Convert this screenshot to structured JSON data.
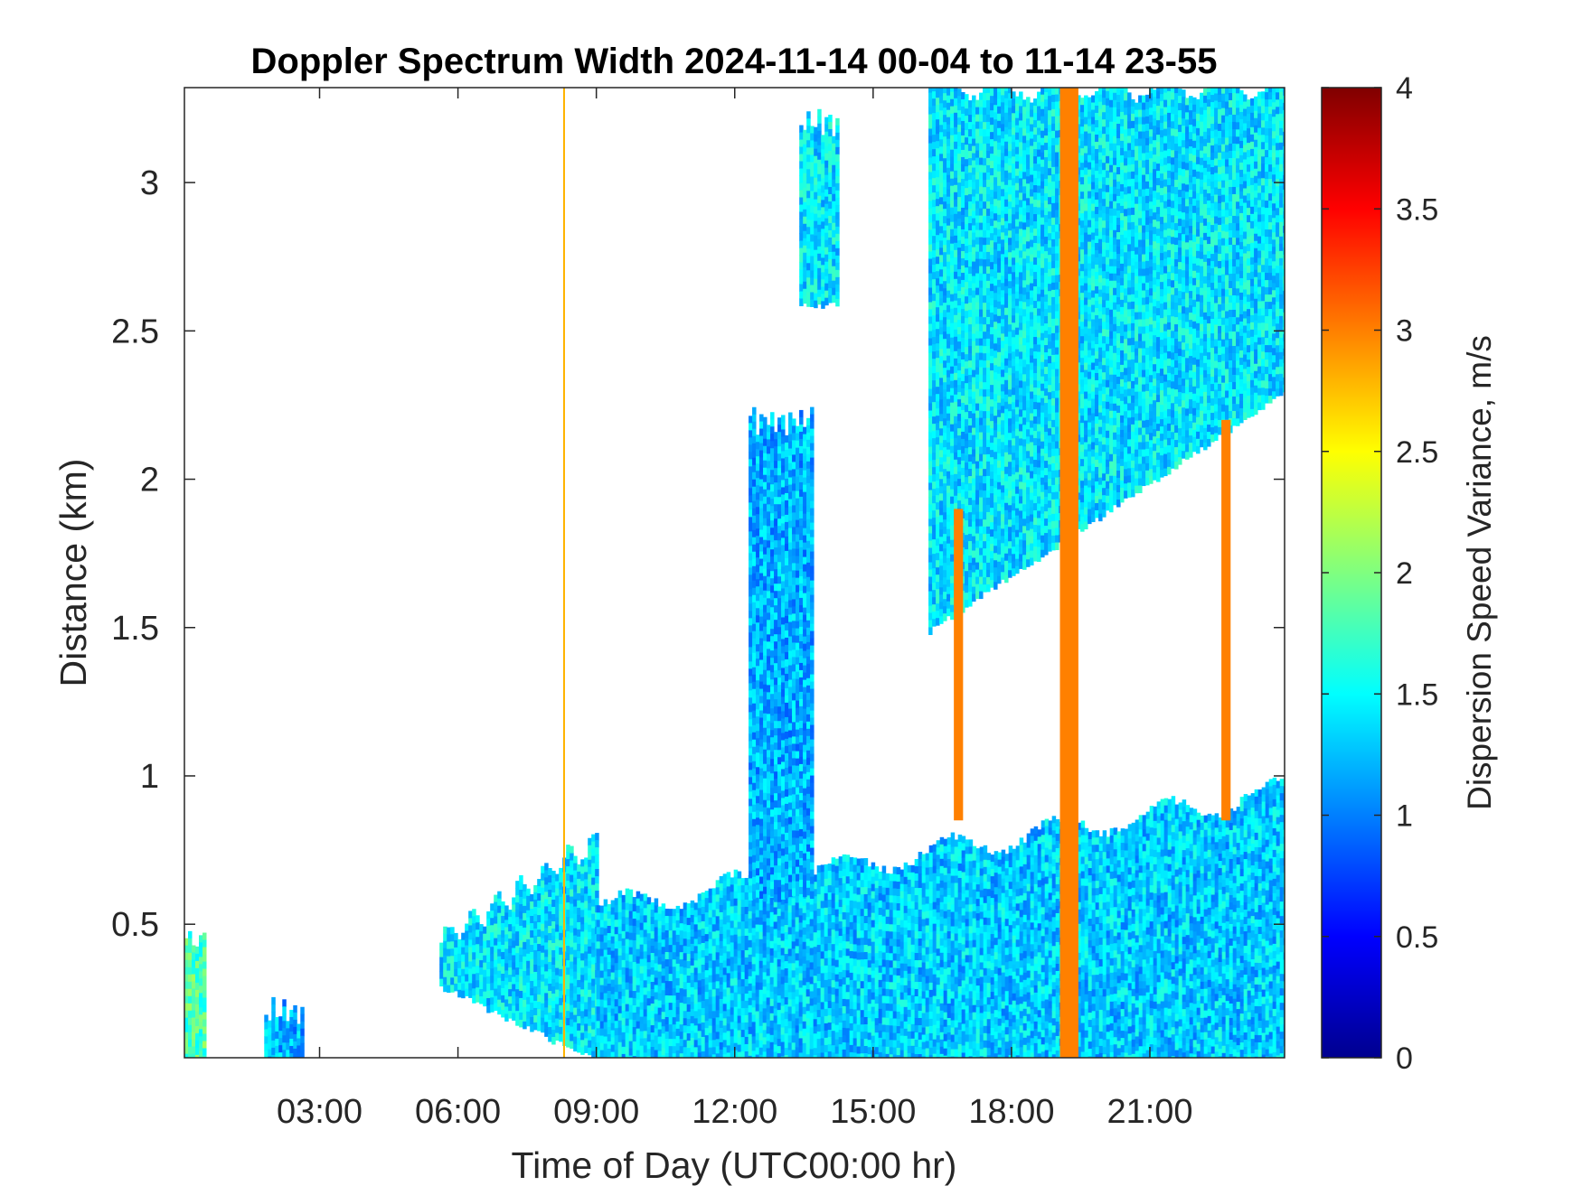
{
  "chart_data": {
    "type": "heatmap",
    "title": "Doppler Spectrum Width 2024-11-14 00-04 to 11-14 23-55",
    "xlabel": "Time of Day (UTC00:00 hr)",
    "ylabel": "Distance (km)",
    "colorbar_label": "Dispersion Speed Variance, m/s",
    "colormap": "jet",
    "xlim": [
      0.07,
      23.92
    ],
    "ylim": [
      0.05,
      3.32
    ],
    "clim": [
      0,
      4
    ],
    "x_ticks": [
      3,
      6,
      9,
      12,
      15,
      18,
      21
    ],
    "x_tick_labels": [
      "03:00",
      "06:00",
      "09:00",
      "12:00",
      "15:00",
      "18:00",
      "21:00"
    ],
    "y_ticks": [
      0.5,
      1,
      1.5,
      2,
      2.5,
      3
    ],
    "y_tick_labels": [
      "0.5",
      "1",
      "1.5",
      "2",
      "2.5",
      "3"
    ],
    "colorbar_ticks": [
      0,
      0.5,
      1,
      1.5,
      2,
      2.5,
      3,
      3.5,
      4
    ],
    "colorbar_tick_labels": [
      "0",
      "0.5",
      "1",
      "1.5",
      "2",
      "2.5",
      "3",
      "3.5",
      "4"
    ],
    "grid": false,
    "regions": [
      {
        "kind": "boundary_layer",
        "start_hr": 5.6,
        "end_hr": 9.0,
        "top_km": [
          0.45,
          0.78
        ],
        "bottom_km": [
          0.3,
          0.05
        ],
        "value_mps": 1.4
      },
      {
        "kind": "boundary_layer",
        "start_hr": 9.0,
        "end_hr": 23.92,
        "top_km": [
          0.55,
          0.95
        ],
        "bottom_km": 0.05,
        "value_mps": 1.3
      },
      {
        "kind": "elevated_layer",
        "start_hr": 16.2,
        "end_hr": 23.92,
        "top_km": 3.32,
        "bottom_km": [
          1.5,
          2.3
        ],
        "value_mps": 1.4
      },
      {
        "kind": "plume",
        "start_hr": 12.3,
        "end_hr": 13.7,
        "top_km": 2.2,
        "bottom_km": 0.6,
        "value_mps": 1.2
      },
      {
        "kind": "plume",
        "start_hr": 13.4,
        "end_hr": 14.2,
        "top_km": 3.2,
        "bottom_km": 2.6,
        "value_mps": 1.4
      },
      {
        "kind": "near_surface_echo",
        "start_hr": 0.07,
        "end_hr": 0.5,
        "top_km": 0.45,
        "bottom_km": 0.05,
        "value_mps": 1.8
      },
      {
        "kind": "near_surface_echo",
        "start_hr": 1.8,
        "end_hr": 2.6,
        "top_km": 0.2,
        "bottom_km": 0.05,
        "value_mps": 1.2
      },
      {
        "kind": "high_variance_band",
        "start_hr": 19.05,
        "end_hr": 19.45,
        "top_km": 3.32,
        "bottom_km": 0.05,
        "value_mps": 3.0
      },
      {
        "kind": "high_variance_band",
        "start_hr": 16.75,
        "end_hr": 16.95,
        "top_km": 1.9,
        "bottom_km": 0.85,
        "value_mps": 3.0
      },
      {
        "kind": "high_variance_band",
        "start_hr": 22.55,
        "end_hr": 22.75,
        "top_km": 2.2,
        "bottom_km": 0.85,
        "value_mps": 3.0
      },
      {
        "kind": "high_variance_line",
        "start_hr": 8.28,
        "end_hr": 8.32,
        "top_km": 3.32,
        "bottom_km": 0.05,
        "value_mps": 2.8
      }
    ]
  }
}
